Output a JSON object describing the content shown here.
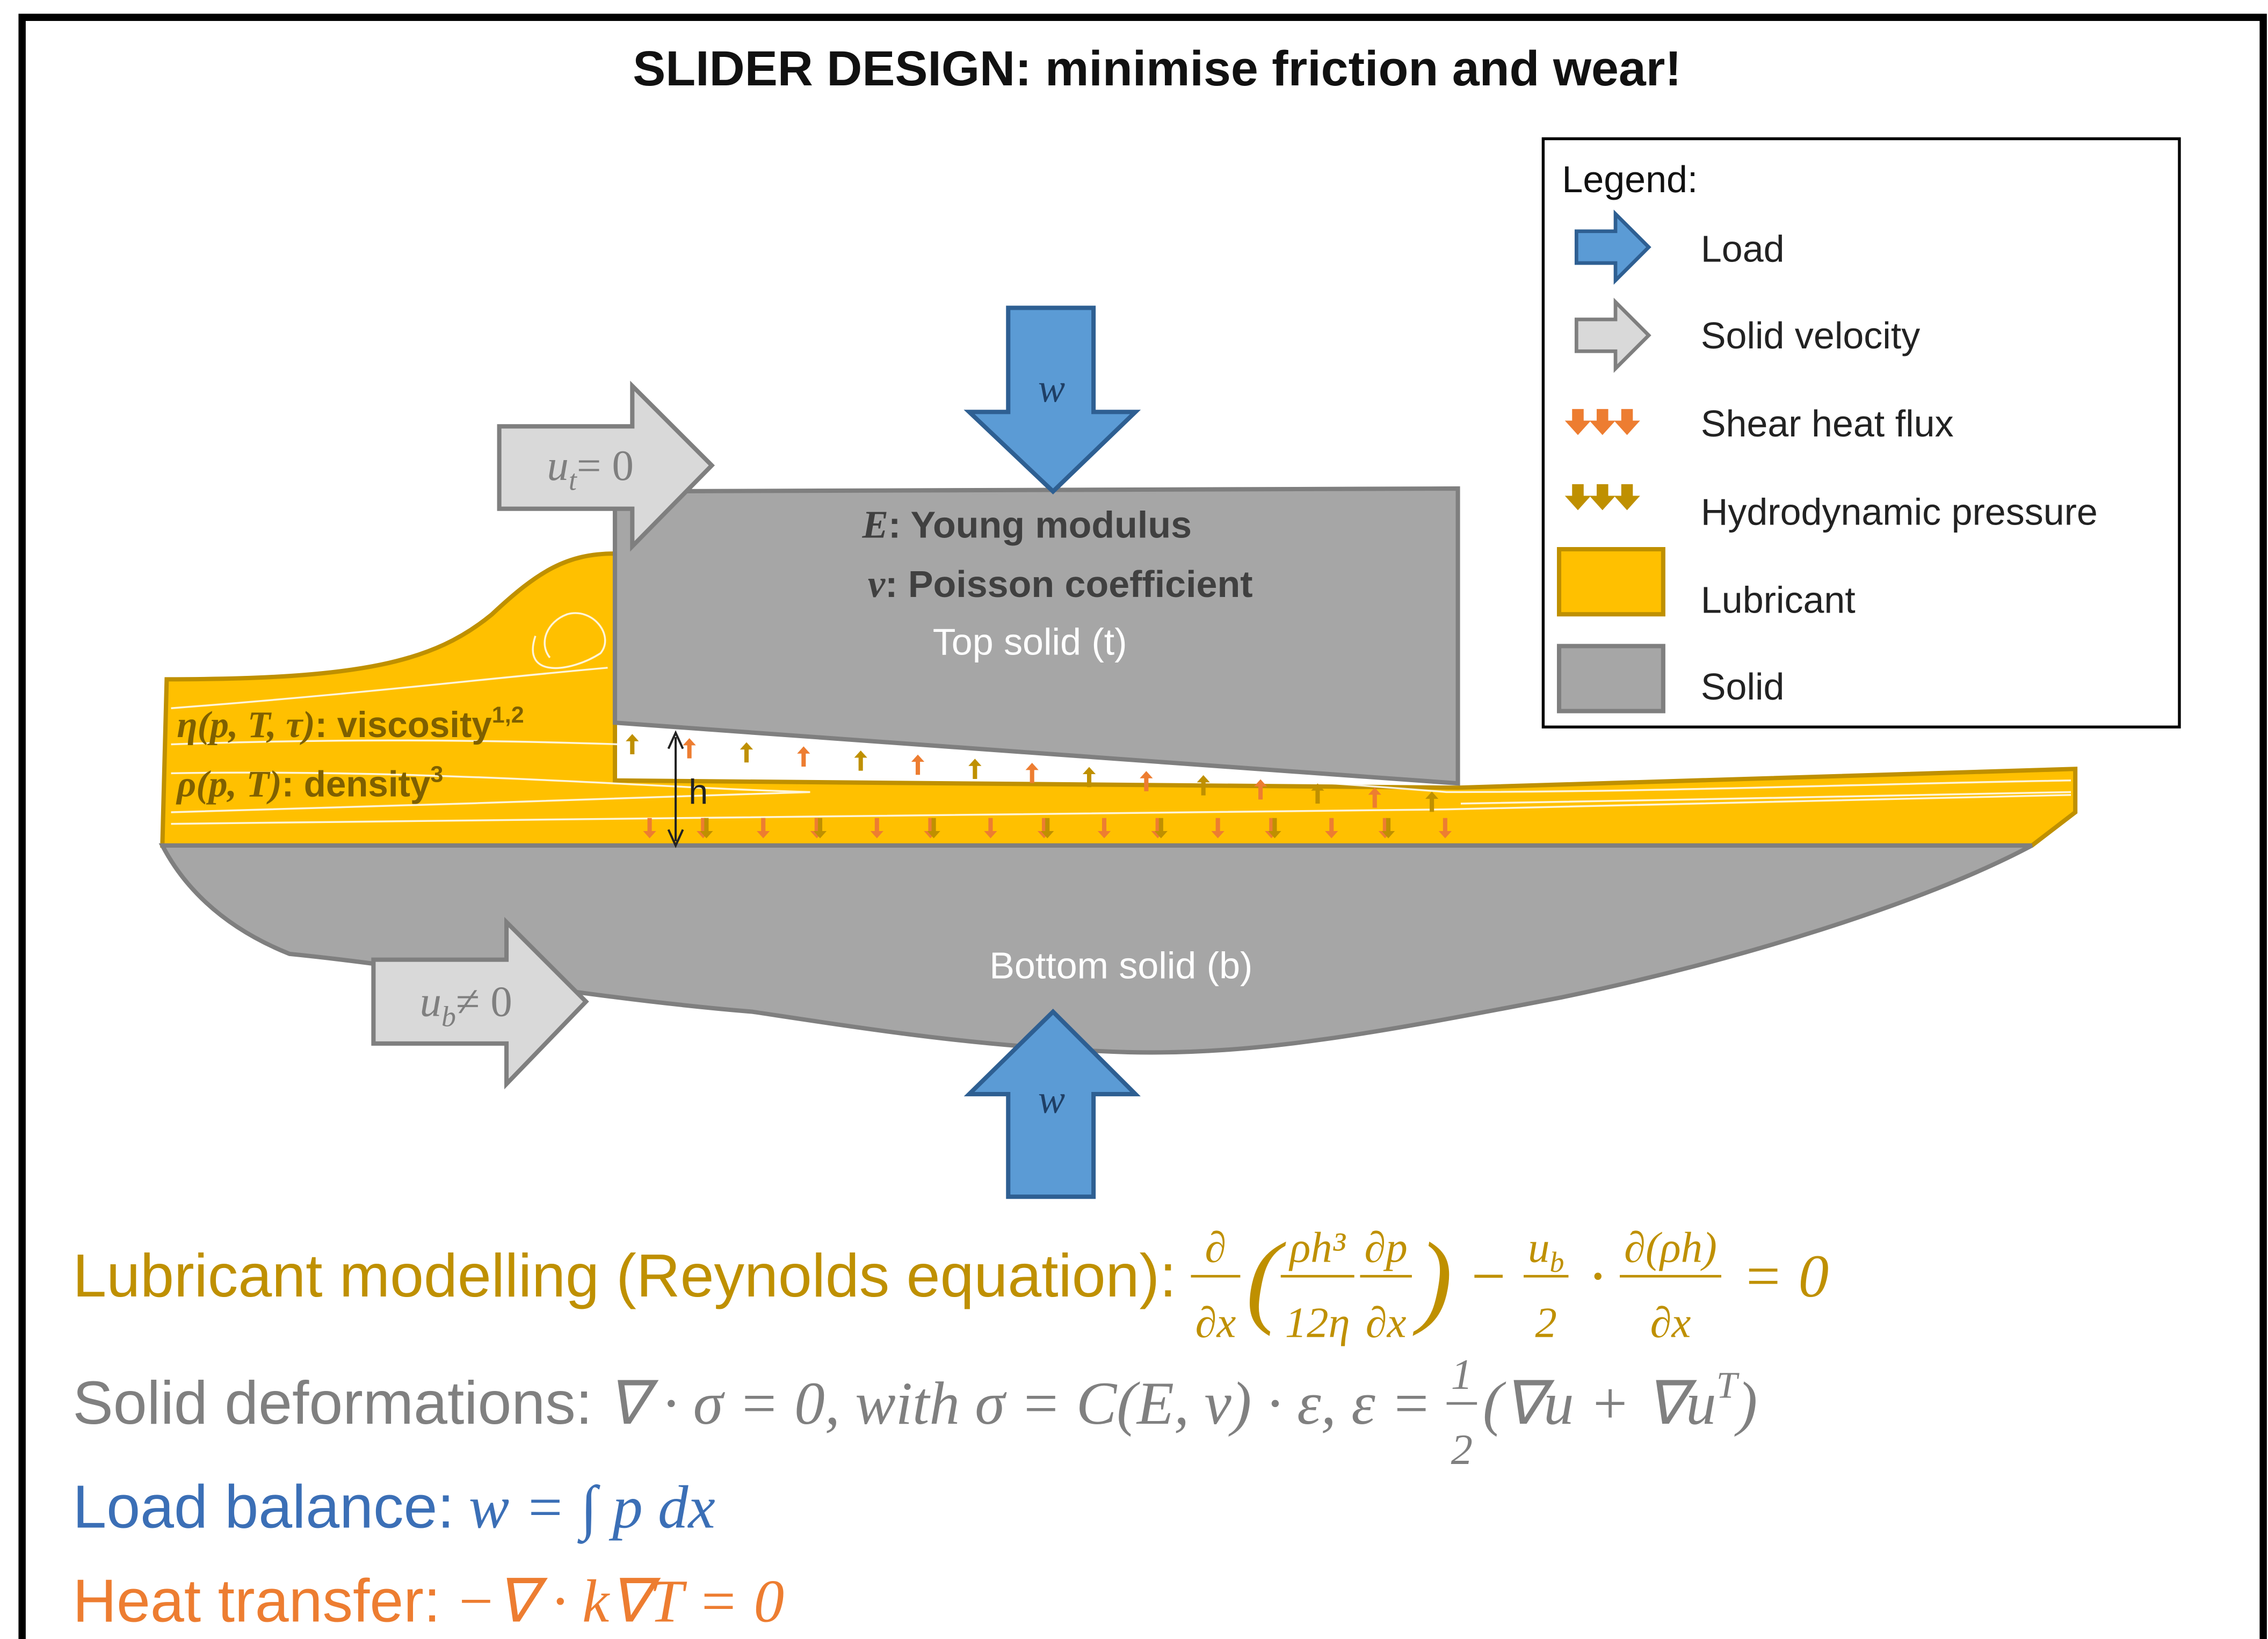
{
  "title": "SLIDER DESIGN: minimise friction and wear!",
  "legend": {
    "title": "Legend:",
    "items": [
      "Load",
      "Solid velocity",
      "Shear heat flux",
      "Hydrodynamic pressure",
      "Lubricant",
      "Solid"
    ]
  },
  "diagram": {
    "load_top": "w",
    "load_bottom": "w",
    "velocity_top": {
      "symbol": "u",
      "subscript": "t",
      "rest": " = 0"
    },
    "velocity_bottom": {
      "symbol": "u",
      "subscript": "b",
      "rest": " ≠ 0"
    },
    "top_properties": [
      {
        "symbol": "E",
        "text": ": Young modulus"
      },
      {
        "symbol": "ν",
        "text": ": Poisson coefficient"
      }
    ],
    "top_solid": "Top solid (t)",
    "bottom_solid": "Bottom solid (b)",
    "gap": "h",
    "lubricant_properties": [
      {
        "symbol": "η(p, T, τ)",
        "text": ": viscosity",
        "sup": "1,2"
      },
      {
        "symbol": "ρ(p, T)",
        "text": ": density",
        "sup": "3"
      }
    ]
  },
  "equations": [
    {
      "label": "Lubricant modelling (Reynolds equation):",
      "color": "#bf9000",
      "parts": [
        {
          "num": "∂",
          "den": "∂x"
        },
        {
          "text": "("
        },
        {
          "num": "ρh³",
          "den": "12η"
        },
        {
          "num": "∂p",
          "den": "∂x"
        },
        {
          "text": ")"
        },
        {
          "text": " − "
        },
        {
          "num": "u",
          "num_sub": "b",
          "den": "2"
        },
        {
          "text": " · "
        },
        {
          "num": "∂(ρh)",
          "den": "∂x"
        },
        {
          "text": " = 0"
        }
      ]
    },
    {
      "label": "Solid deformations:",
      "color": "#808080",
      "parts": [
        {
          "text": "∇ · σ = 0, with σ = C(E, ν) · ε, ε = "
        },
        {
          "num": "1",
          "den": "2"
        },
        {
          "text": "(∇u + ∇u",
          "sup": "T"
        },
        {
          "text": ")"
        }
      ]
    },
    {
      "label": "Load balance:",
      "color": "#3b6fb6",
      "parts": [
        {
          "text": "w = ∫ p dx"
        }
      ]
    },
    {
      "label": "Heat transfer:",
      "color": "#ed7d31",
      "parts": [
        {
          "text": "−∇ · k∇T = 0"
        }
      ]
    }
  ]
}
